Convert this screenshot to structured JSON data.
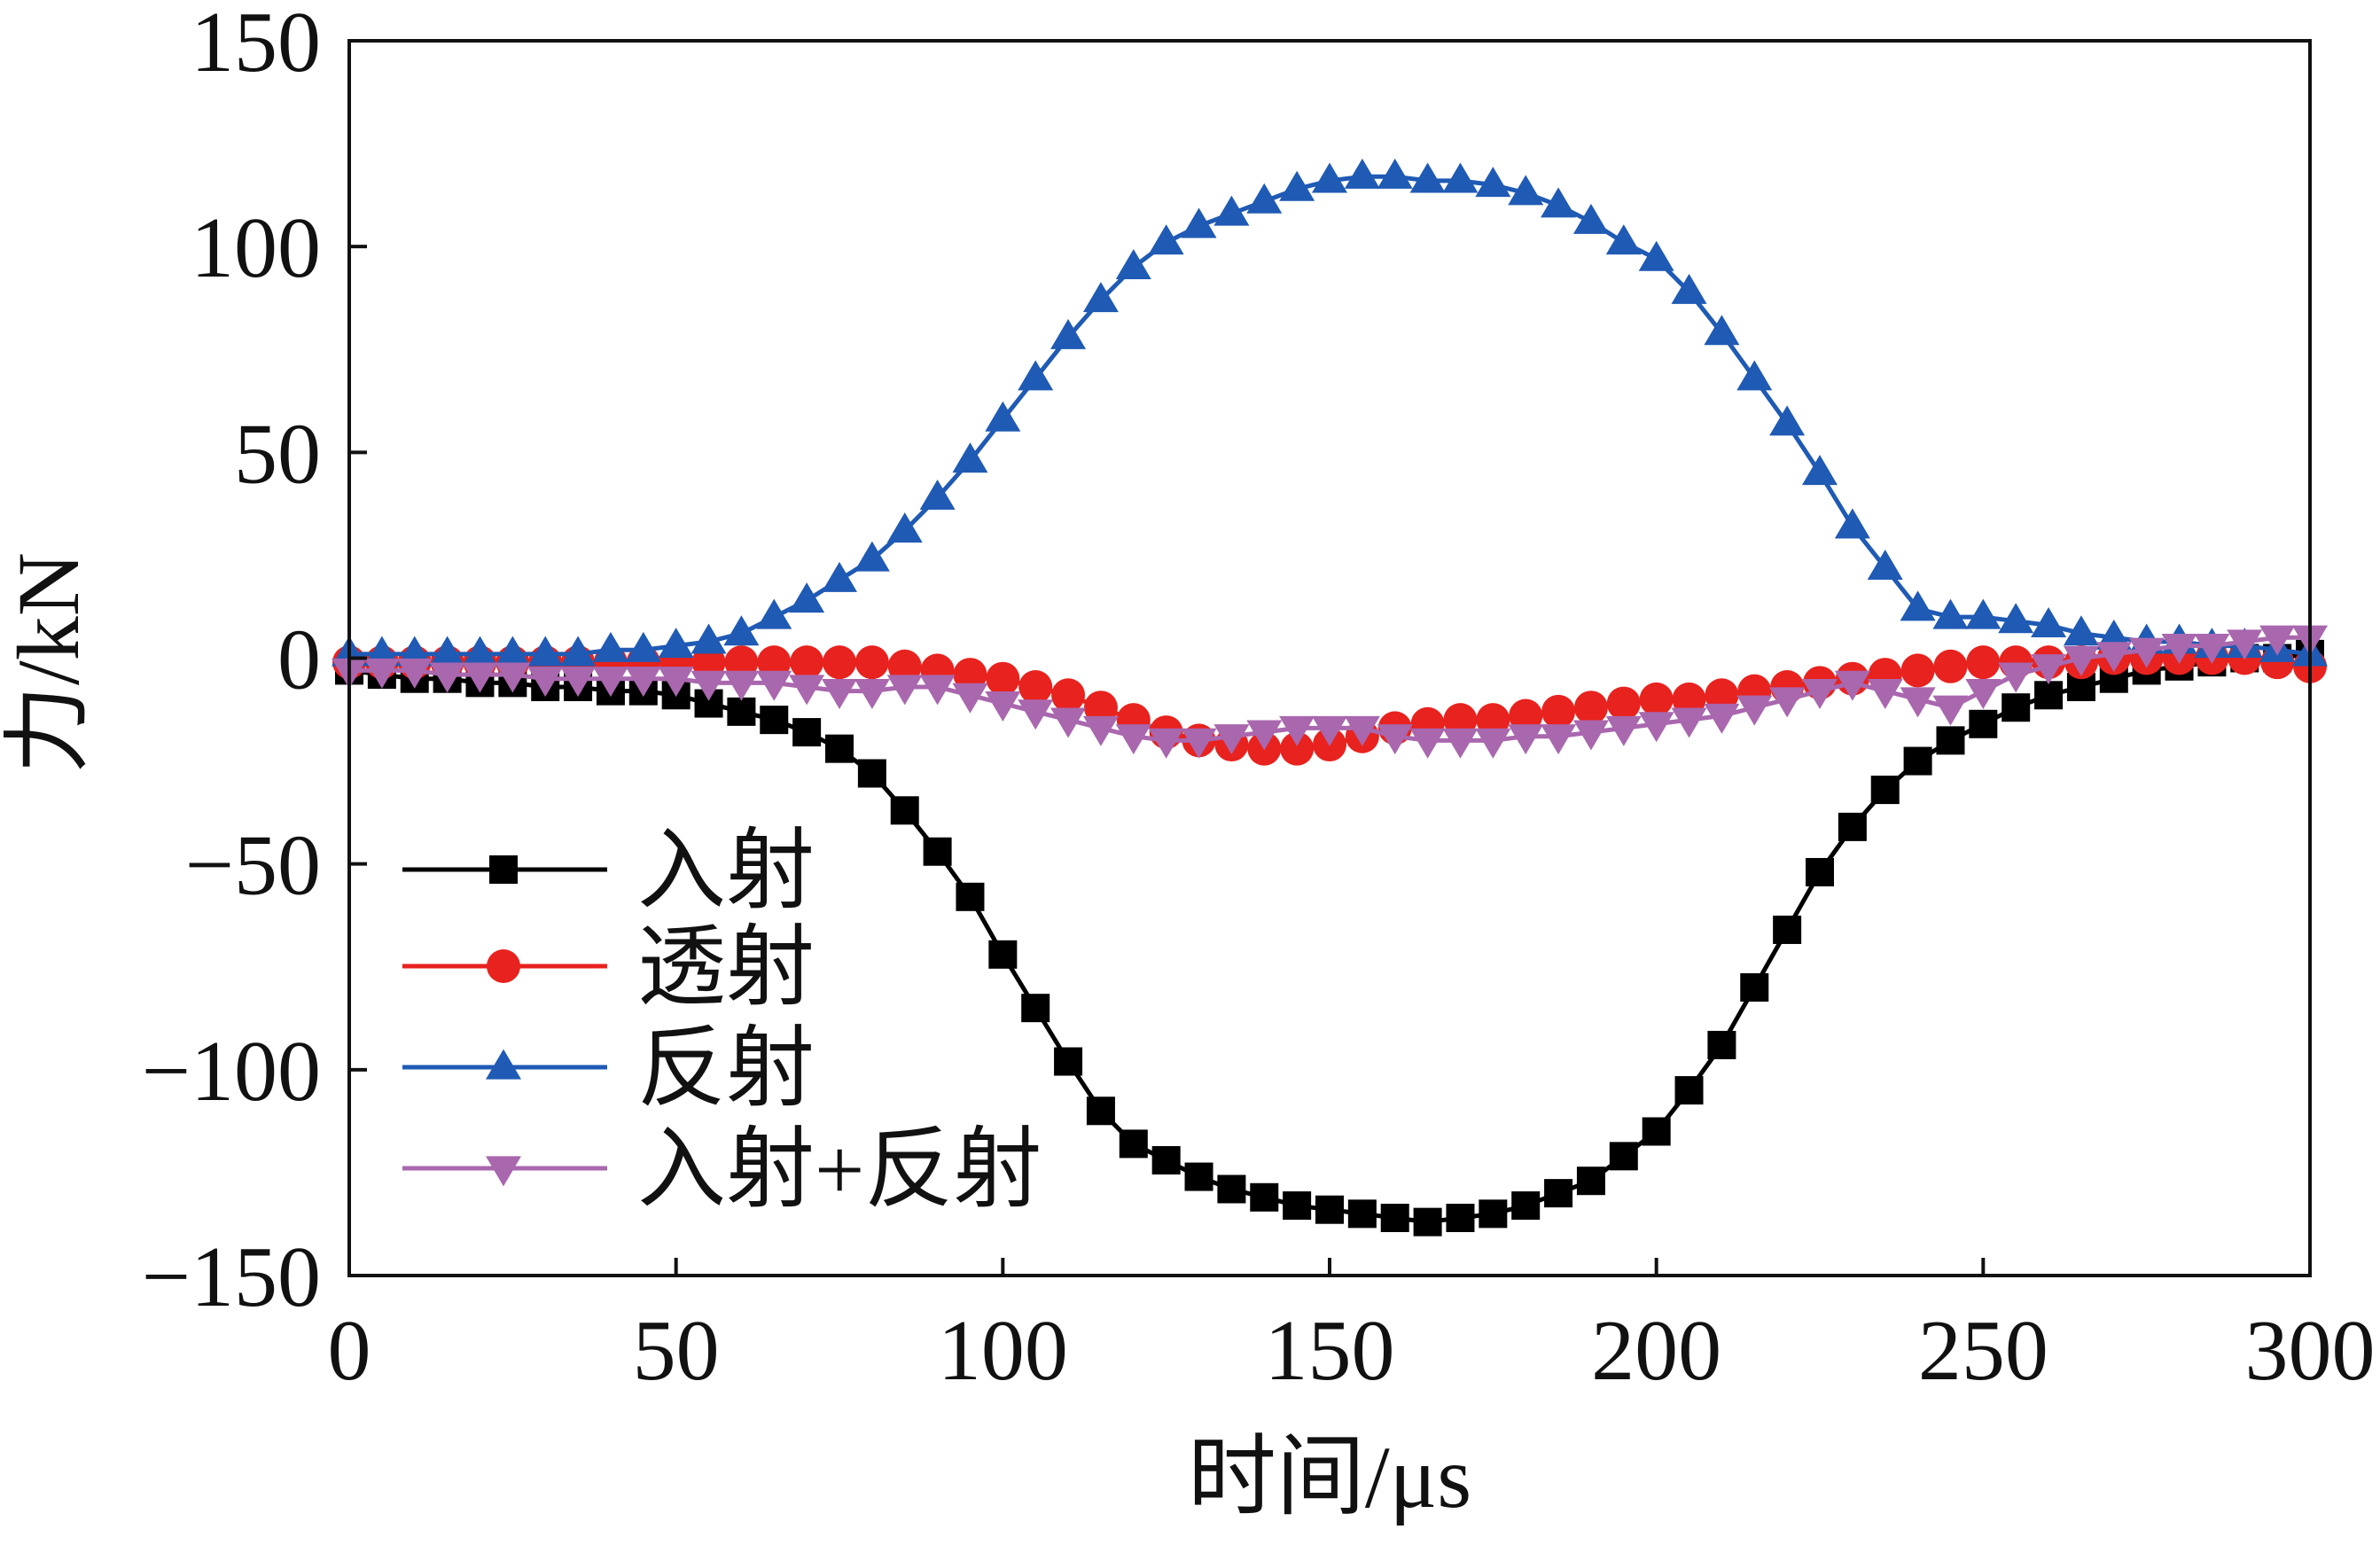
{
  "chart_data": {
    "type": "line",
    "xlabel": "时间/μs",
    "ylabel": "力/kN",
    "xlim": [
      0,
      300
    ],
    "ylim": [
      -150,
      150
    ],
    "xticks": [
      "0",
      "50",
      "100",
      "150",
      "200",
      "250",
      "300"
    ],
    "yticks": [
      "150",
      "100",
      "50",
      "0",
      "−50",
      "−100",
      "−150"
    ],
    "grid": false,
    "legend": "bottom-left",
    "x": [
      0,
      5,
      10,
      15,
      20,
      25,
      30,
      35,
      40,
      45,
      50,
      55,
      60,
      65,
      70,
      75,
      80,
      85,
      90,
      95,
      100,
      105,
      110,
      115,
      120,
      125,
      130,
      135,
      140,
      145,
      150,
      155,
      160,
      165,
      170,
      175,
      180,
      185,
      190,
      195,
      200,
      205,
      210,
      215,
      220,
      225,
      230,
      235,
      240,
      245,
      250,
      255,
      260,
      265,
      270,
      275,
      280,
      285,
      290,
      295,
      300
    ],
    "series": [
      {
        "name": "入射",
        "color": "#000000",
        "marker": "square",
        "values": [
          -3,
          -4,
          -5,
          -5,
          -6,
          -6,
          -7,
          -7,
          -8,
          -8,
          -9,
          -11,
          -13,
          -15,
          -18,
          -22,
          -28,
          -37,
          -47,
          -58,
          -72,
          -85,
          -98,
          -110,
          -118,
          -122,
          -126,
          -129,
          -131,
          -133,
          -134,
          -135,
          -136,
          -137,
          -136,
          -135,
          -133,
          -130,
          -127,
          -121,
          -115,
          -105,
          -94,
          -80,
          -66,
          -52,
          -41,
          -32,
          -25,
          -20,
          -16,
          -12,
          -9,
          -7,
          -5,
          -3,
          -2,
          -1,
          0,
          0,
          1
        ]
      },
      {
        "name": "透射",
        "color": "#e8221e",
        "marker": "circle",
        "values": [
          -1,
          -1,
          -1,
          -1,
          -1,
          -1,
          -1,
          -1,
          -1,
          -1,
          -1,
          -1,
          -1,
          -1,
          -1,
          -1,
          -1,
          -2,
          -3,
          -4,
          -5,
          -7,
          -9,
          -12,
          -15,
          -18,
          -20,
          -21,
          -22,
          -22,
          -21,
          -19,
          -17,
          -16,
          -15,
          -15,
          -14,
          -13,
          -12,
          -11,
          -10,
          -10,
          -9,
          -8,
          -7,
          -6,
          -5,
          -4,
          -3,
          -2,
          -1,
          -1,
          -1,
          -1,
          0,
          0,
          0,
          0,
          0,
          -1,
          -2
        ]
      },
      {
        "name": "反射",
        "color": "#1f5ab4",
        "marker": "triangle-up",
        "values": [
          1,
          1,
          1,
          1,
          1,
          1,
          1,
          1,
          2,
          2,
          3,
          4,
          6,
          10,
          14,
          19,
          24,
          31,
          39,
          48,
          58,
          68,
          78,
          87,
          95,
          101,
          105,
          108,
          111,
          114,
          116,
          117,
          117,
          116,
          116,
          115,
          113,
          110,
          106,
          101,
          97,
          89,
          79,
          68,
          57,
          45,
          32,
          22,
          12,
          10,
          10,
          9,
          8,
          6,
          5,
          4,
          4,
          3,
          3,
          2,
          1
        ]
      },
      {
        "name": "入射+反射",
        "color": "#a967ae",
        "marker": "triangle-down",
        "values": [
          -3,
          -3,
          -3,
          -4,
          -4,
          -4,
          -5,
          -5,
          -5,
          -5,
          -5,
          -6,
          -6,
          -6,
          -7,
          -8,
          -8,
          -7,
          -7,
          -9,
          -11,
          -13,
          -15,
          -17,
          -19,
          -20,
          -20,
          -19,
          -18,
          -17,
          -17,
          -17,
          -19,
          -20,
          -20,
          -20,
          -19,
          -19,
          -18,
          -17,
          -16,
          -15,
          -14,
          -12,
          -10,
          -8,
          -6,
          -8,
          -10,
          -12,
          -8,
          -4,
          -2,
          0,
          1,
          2,
          3,
          3,
          4,
          5,
          5
        ]
      }
    ]
  }
}
